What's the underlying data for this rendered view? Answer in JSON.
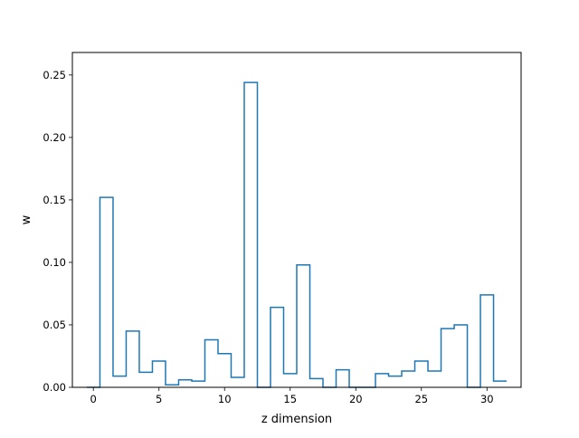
{
  "chart_data": {
    "type": "step",
    "xlabel": "z dimension",
    "ylabel": "w",
    "xlim": [
      -1.6,
      32.6
    ],
    "ylim": [
      0,
      0.268
    ],
    "x_ticks": [
      0,
      5,
      10,
      15,
      20,
      25,
      30
    ],
    "x_tick_labels": [
      "0",
      "5",
      "10",
      "15",
      "20",
      "25",
      "30"
    ],
    "y_ticks": [
      0.0,
      0.05,
      0.1,
      0.15,
      0.2,
      0.25
    ],
    "y_tick_labels": [
      "0.00",
      "0.05",
      "0.10",
      "0.15",
      "0.20",
      "0.25"
    ],
    "grid": false,
    "line_color": "#1f77b4",
    "x": [
      0,
      1,
      2,
      3,
      4,
      5,
      6,
      7,
      8,
      9,
      10,
      11,
      12,
      13,
      14,
      15,
      16,
      17,
      18,
      19,
      20,
      21,
      22,
      23,
      24,
      25,
      26,
      27,
      28,
      29,
      30,
      31
    ],
    "values": [
      0.0,
      0.152,
      0.009,
      0.045,
      0.012,
      0.021,
      0.002,
      0.006,
      0.005,
      0.038,
      0.027,
      0.008,
      0.244,
      0.0,
      0.064,
      0.011,
      0.098,
      0.007,
      0.0,
      0.014,
      0.0,
      0.0,
      0.011,
      0.009,
      0.013,
      0.021,
      0.013,
      0.047,
      0.05,
      0.0,
      0.074,
      0.005
    ]
  }
}
